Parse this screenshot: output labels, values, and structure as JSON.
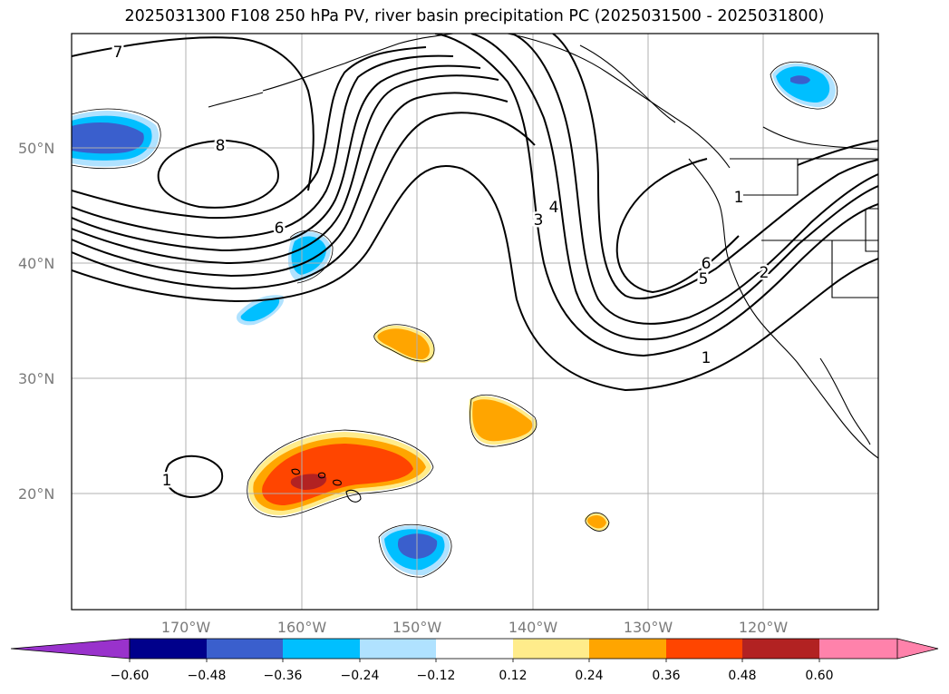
{
  "title": "2025031300 F108 250 hPa PV, river basin precipitation PC (2025031500 - 2025031800)",
  "lat_labels": [
    "50°N",
    "40°N",
    "30°N",
    "20°N"
  ],
  "lon_labels": [
    "170°W",
    "160°W",
    "150°W",
    "140°W",
    "130°W",
    "120°W"
  ],
  "pv_contour_labels": [
    "7",
    "8",
    "6",
    "3",
    "4",
    "5",
    "6",
    "1",
    "2",
    "1",
    "1"
  ],
  "colorbar": {
    "ticks": [
      "−0.60",
      "−0.48",
      "−0.36",
      "−0.24",
      "−0.12",
      "0.12",
      "0.24",
      "0.36",
      "0.48",
      "0.60"
    ],
    "colors": [
      "#9932cc",
      "#00008b",
      "#3a5fcd",
      "#00bfff",
      "#b0e2ff",
      "#ffffff",
      "#ffec8b",
      "#ffa500",
      "#ff4500",
      "#b22222",
      "#ff82ab"
    ]
  }
}
